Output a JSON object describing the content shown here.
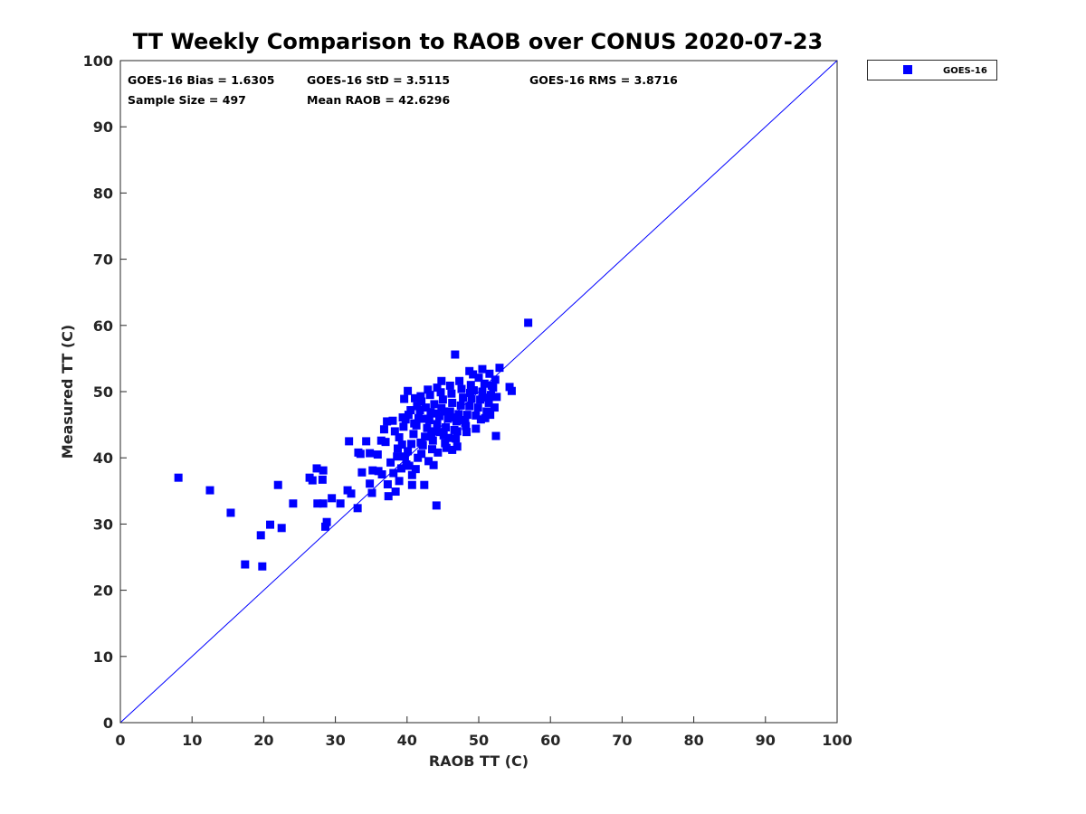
{
  "chart_data": {
    "type": "scatter",
    "title": "TT Weekly Comparison to RAOB over CONUS 2020-07-23",
    "xlabel": "RAOB TT (C)",
    "ylabel": "Measured TT (C)",
    "xlim": [
      0,
      100
    ],
    "ylim": [
      0,
      100
    ],
    "xticks": [
      "0",
      "10",
      "20",
      "30",
      "40",
      "50",
      "60",
      "70",
      "80",
      "90",
      "100"
    ],
    "yticks": [
      "0",
      "10",
      "20",
      "30",
      "40",
      "50",
      "60",
      "70",
      "80",
      "90",
      "100"
    ],
    "grid": false,
    "legend": {
      "position": "outside-top-right",
      "entries": [
        "GOES-16"
      ]
    },
    "reference_line": {
      "type": "one-to-one",
      "from": [
        0,
        0
      ],
      "to": [
        100,
        100
      ],
      "color": "#0000ff"
    },
    "stats": [
      "GOES-16 Bias = 1.6305",
      "GOES-16 StD = 3.5115",
      "GOES-16 RMS = 3.8716",
      "Sample Size = 497",
      "Mean RAOB = 42.6296"
    ],
    "series": [
      {
        "name": "GOES-16",
        "color": "#0000ff",
        "marker": "square",
        "points": [
          [
            8.1,
            37.0
          ],
          [
            12.5,
            35.1
          ],
          [
            15.4,
            31.7
          ],
          [
            17.4,
            23.9
          ],
          [
            19.8,
            23.6
          ],
          [
            19.6,
            28.3
          ],
          [
            20.9,
            29.9
          ],
          [
            22.5,
            29.4
          ],
          [
            22.0,
            35.9
          ],
          [
            24.1,
            33.1
          ],
          [
            26.4,
            37.0
          ],
          [
            26.8,
            36.6
          ],
          [
            27.4,
            38.4
          ],
          [
            28.3,
            38.1
          ],
          [
            28.2,
            36.7
          ],
          [
            27.5,
            33.1
          ],
          [
            28.3,
            33.1
          ],
          [
            28.6,
            29.6
          ],
          [
            28.8,
            30.3
          ],
          [
            29.5,
            33.9
          ],
          [
            30.7,
            33.1
          ],
          [
            31.9,
            42.5
          ],
          [
            31.7,
            35.1
          ],
          [
            32.2,
            34.6
          ],
          [
            33.1,
            32.4
          ],
          [
            34.3,
            42.5
          ],
          [
            33.2,
            40.8
          ],
          [
            33.7,
            37.8
          ],
          [
            34.8,
            36.1
          ],
          [
            35.1,
            34.7
          ],
          [
            35.2,
            38.1
          ],
          [
            37.4,
            34.2
          ],
          [
            38.9,
            36.5
          ],
          [
            38.4,
            34.9
          ],
          [
            40.7,
            35.9
          ],
          [
            42.4,
            35.9
          ],
          [
            44.1,
            32.8
          ],
          [
            52.4,
            43.3
          ],
          [
            56.9,
            60.4
          ],
          [
            46.7,
            55.6
          ],
          [
            54.3,
            50.7
          ],
          [
            54.6,
            50.1
          ],
          [
            39.6,
            48.9
          ],
          [
            40.1,
            50.1
          ],
          [
            41.9,
            49.3
          ],
          [
            38.0,
            45.6
          ],
          [
            49.6,
            44.4
          ],
          [
            47.0,
            41.7
          ],
          [
            48.7,
            53.1
          ],
          [
            50.5,
            53.4
          ],
          [
            52.9,
            53.6
          ],
          [
            51.5,
            52.7
          ],
          [
            44.8,
            51.6
          ],
          [
            40.7,
            37.4
          ],
          [
            33.5,
            40.6
          ],
          [
            34.8,
            40.7
          ],
          [
            35.9,
            40.5
          ],
          [
            36.4,
            42.6
          ],
          [
            37.0,
            42.4
          ],
          [
            36.5,
            37.5
          ],
          [
            36.0,
            38.0
          ],
          [
            37.3,
            36.0
          ],
          [
            38.1,
            37.7
          ],
          [
            37.7,
            39.3
          ],
          [
            38.6,
            40.2
          ],
          [
            39.2,
            38.4
          ],
          [
            39.9,
            39.0
          ],
          [
            40.3,
            38.8
          ],
          [
            41.2,
            38.3
          ],
          [
            41.5,
            40.0
          ],
          [
            42.0,
            40.6
          ],
          [
            43.0,
            39.5
          ],
          [
            43.7,
            38.9
          ],
          [
            44.3,
            40.8
          ],
          [
            45.5,
            41.5
          ],
          [
            46.3,
            41.2
          ],
          [
            36.8,
            44.3
          ],
          [
            37.2,
            45.5
          ],
          [
            38.3,
            44.0
          ],
          [
            38.9,
            43.1
          ],
          [
            39.5,
            44.7
          ],
          [
            39.8,
            45.8
          ],
          [
            40.2,
            46.5
          ],
          [
            40.6,
            42.1
          ],
          [
            40.9,
            43.6
          ],
          [
            41.3,
            44.9
          ],
          [
            41.6,
            46.0
          ],
          [
            41.8,
            47.2
          ],
          [
            42.2,
            41.9
          ],
          [
            42.5,
            43.2
          ],
          [
            42.8,
            44.5
          ],
          [
            43.1,
            45.7
          ],
          [
            43.3,
            46.9
          ],
          [
            43.6,
            42.6
          ],
          [
            43.9,
            44.0
          ],
          [
            44.2,
            45.1
          ],
          [
            44.5,
            46.3
          ],
          [
            44.8,
            47.5
          ],
          [
            45.1,
            43.4
          ],
          [
            45.4,
            44.6
          ],
          [
            45.7,
            45.9
          ],
          [
            46.0,
            47.0
          ],
          [
            46.3,
            48.3
          ],
          [
            46.6,
            44.2
          ],
          [
            46.9,
            45.5
          ],
          [
            47.2,
            46.6
          ],
          [
            47.5,
            47.9
          ],
          [
            47.8,
            49.1
          ],
          [
            48.1,
            45.3
          ],
          [
            48.4,
            46.5
          ],
          [
            48.7,
            47.8
          ],
          [
            49.0,
            48.9
          ],
          [
            49.3,
            50.2
          ],
          [
            49.6,
            46.4
          ],
          [
            49.9,
            47.6
          ],
          [
            50.2,
            48.8
          ],
          [
            50.5,
            50.0
          ],
          [
            50.8,
            51.2
          ],
          [
            51.1,
            47.0
          ],
          [
            51.4,
            48.3
          ],
          [
            51.7,
            49.5
          ],
          [
            52.0,
            50.6
          ],
          [
            52.3,
            51.8
          ],
          [
            52.2,
            47.6
          ],
          [
            50.0,
            52.1
          ],
          [
            48.9,
            51.0
          ],
          [
            47.6,
            50.4
          ],
          [
            46.2,
            49.7
          ],
          [
            45.0,
            48.8
          ],
          [
            43.8,
            48.1
          ],
          [
            42.6,
            47.6
          ],
          [
            41.4,
            47.8
          ],
          [
            40.1,
            41.0
          ],
          [
            39.3,
            42.0
          ],
          [
            41.0,
            45.2
          ],
          [
            42.3,
            45.9
          ],
          [
            43.4,
            43.7
          ],
          [
            44.6,
            43.9
          ],
          [
            45.8,
            43.0
          ],
          [
            47.0,
            44.0
          ],
          [
            48.2,
            44.8
          ],
          [
            44.0,
            46.7
          ],
          [
            45.2,
            47.0
          ],
          [
            46.5,
            46.1
          ],
          [
            47.7,
            45.7
          ],
          [
            48.8,
            49.8
          ],
          [
            50.6,
            49.1
          ],
          [
            51.8,
            50.9
          ],
          [
            49.2,
            52.6
          ],
          [
            47.3,
            51.6
          ],
          [
            46.0,
            50.9
          ],
          [
            44.7,
            49.9
          ],
          [
            43.2,
            49.5
          ],
          [
            42.0,
            48.5
          ],
          [
            40.5,
            47.2
          ],
          [
            39.4,
            46.1
          ],
          [
            38.7,
            41.4
          ],
          [
            39.7,
            40.2
          ],
          [
            41.9,
            42.3
          ],
          [
            43.5,
            41.3
          ],
          [
            45.3,
            42.2
          ],
          [
            46.8,
            42.9
          ],
          [
            48.3,
            43.9
          ],
          [
            50.3,
            45.8
          ],
          [
            51.6,
            46.5
          ],
          [
            52.5,
            49.2
          ],
          [
            50.9,
            46.0
          ],
          [
            42.9,
            50.3
          ],
          [
            41.1,
            49.0
          ],
          [
            44.2,
            50.6
          ]
        ]
      }
    ]
  }
}
